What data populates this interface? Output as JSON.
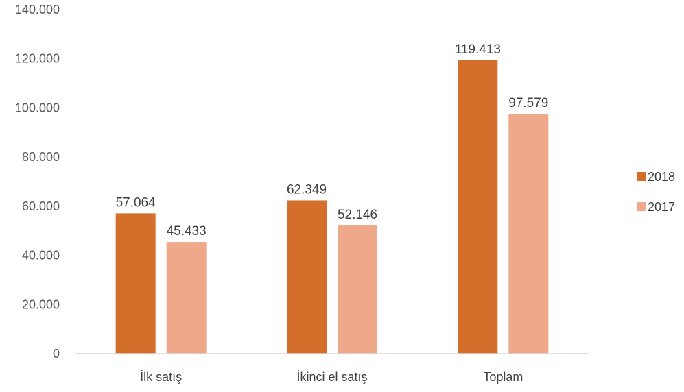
{
  "chart_data": {
    "type": "bar",
    "title": "",
    "xlabel": "",
    "ylabel": "",
    "categories": [
      "İlk satış",
      "İkinci el satış",
      "Toplam"
    ],
    "series": [
      {
        "name": "2018",
        "values": [
          57064,
          62349,
          119413
        ],
        "labels": [
          "57.064",
          "62.349",
          "119.413"
        ],
        "color": "#D36F2A"
      },
      {
        "name": "2017",
        "values": [
          45433,
          52146,
          97579
        ],
        "labels": [
          "45.433",
          "52.146",
          "97.579"
        ],
        "color": "#F0A88A"
      }
    ],
    "ylim": [
      0,
      140000
    ],
    "yticks": [
      0,
      20000,
      40000,
      60000,
      80000,
      100000,
      120000,
      140000
    ],
    "ytick_labels": [
      "0",
      "20.000",
      "40.000",
      "60.000",
      "80.000",
      "100.000",
      "120.000",
      "140.000"
    ],
    "grid": false,
    "legend": {
      "position": "right"
    }
  }
}
